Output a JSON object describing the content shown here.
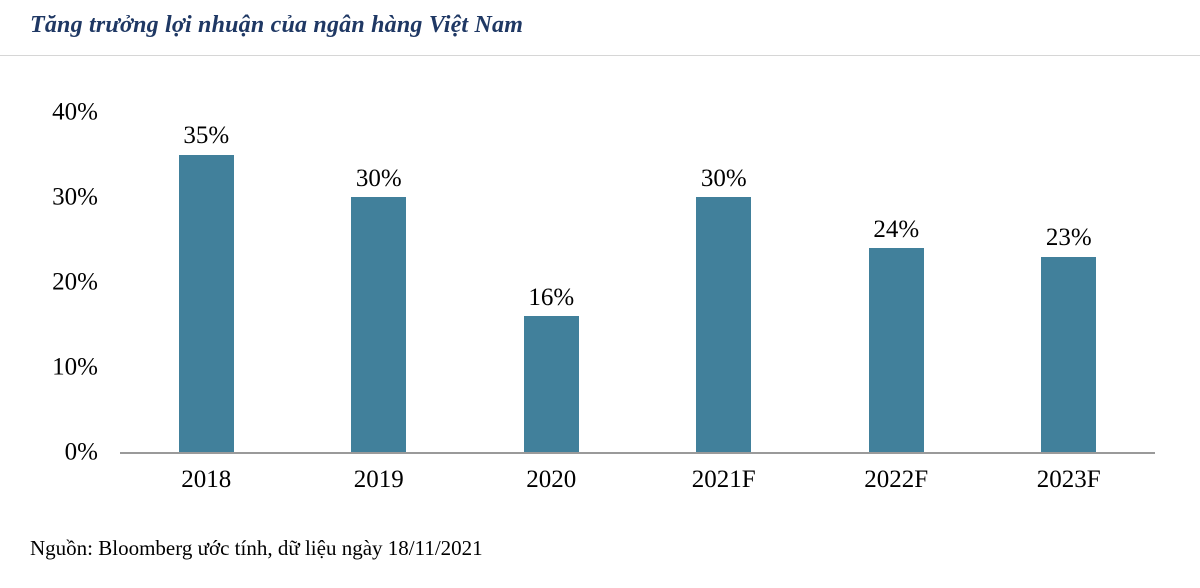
{
  "page": {
    "title": "Tăng trưởng lợi nhuận của ngân hàng Việt Nam",
    "source": "Nguồn: Bloomberg ước tính, dữ liệu ngày 18/11/2021"
  },
  "colors": {
    "bar": "#41809B",
    "title_text": "#1F3864",
    "axis_line": "#9A9A9A",
    "divider": "#D6D6D6",
    "text": "#000000",
    "background": "#FFFFFF"
  },
  "chart_data": {
    "type": "bar",
    "title": "Tăng trưởng lợi nhuận của ngân hàng Việt Nam",
    "categories": [
      "2018",
      "2019",
      "2020",
      "2021F",
      "2022F",
      "2023F"
    ],
    "values": [
      35,
      30,
      16,
      30,
      24,
      23
    ],
    "value_labels": [
      "35%",
      "30%",
      "16%",
      "30%",
      "24%",
      "23%"
    ],
    "series_name": "Tăng trưởng lợi nhuận",
    "xlabel": "",
    "ylabel": "",
    "ylim": [
      0,
      40
    ],
    "yticks": [
      0,
      10,
      20,
      30,
      40
    ],
    "ytick_labels": [
      "0%",
      "10%",
      "20%",
      "30%",
      "40%"
    ],
    "grid": false,
    "legend": false,
    "bar_color": "#41809B",
    "source": "Nguồn: Bloomberg ước tính, dữ liệu ngày 18/11/2021"
  }
}
